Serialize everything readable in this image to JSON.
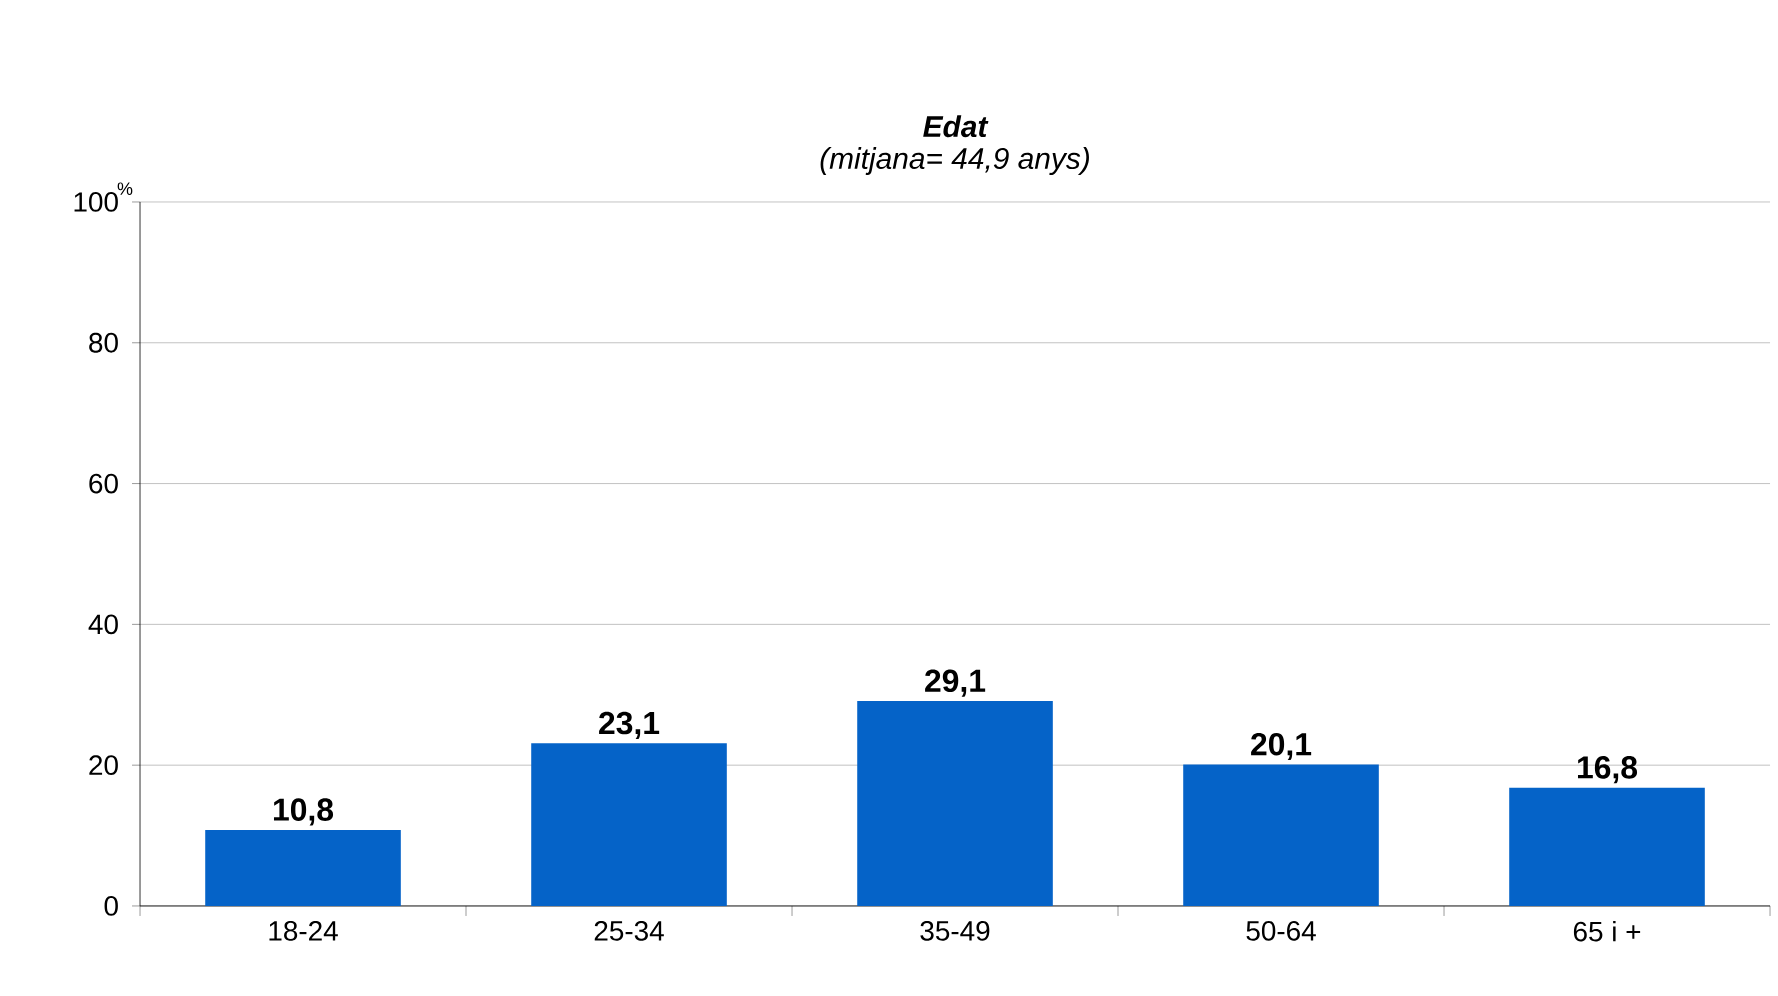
{
  "chart_data": {
    "type": "bar",
    "title": "Edat",
    "subtitle": "(mitjana= 44,9 anys)",
    "ylabel": "%",
    "categories": [
      "18-24",
      "25-34",
      "35-49",
      "50-64",
      "65 i +"
    ],
    "values": [
      10.8,
      23.1,
      29.1,
      20.1,
      16.8
    ],
    "value_labels": [
      "10,8",
      "23,1",
      "29,1",
      "20,1",
      "16,8"
    ],
    "color": "#0563c8",
    "ylim": [
      0,
      100
    ],
    "yticks": [
      0,
      20,
      40,
      60,
      80,
      100
    ],
    "grid": "y"
  }
}
